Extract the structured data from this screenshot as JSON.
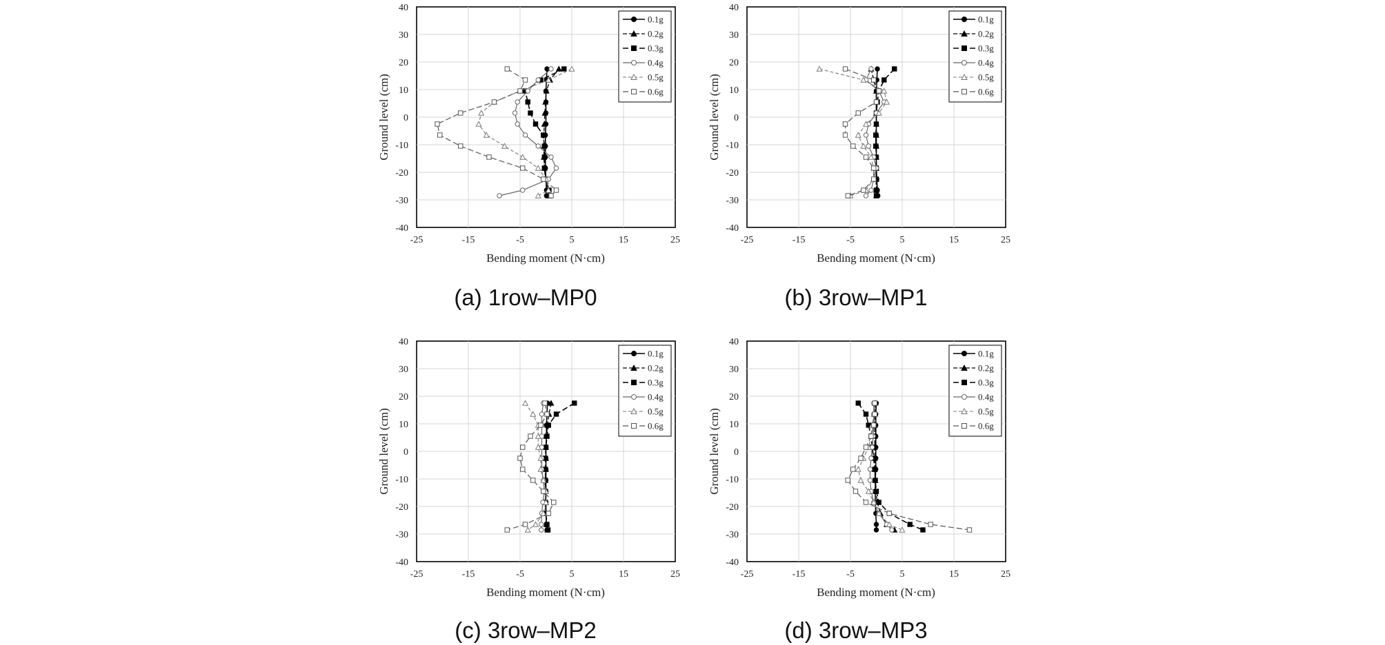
{
  "figure": {
    "captions": [
      "(a) 1row–MP0",
      "(b) 3row–MP1",
      "(c) 3row–MP2",
      "(d) 3row–MP3"
    ]
  },
  "chart_data": [
    {
      "type": "line",
      "id": "a",
      "caption": "(a) 1row–MP0",
      "xlabel": "Bending moment (N·cm)",
      "ylabel": "Ground level (cm)",
      "xlim": [
        -25,
        25
      ],
      "ylim": [
        -40,
        40
      ],
      "xticks": [
        -25,
        -15,
        -5,
        5,
        15,
        25
      ],
      "yticks": [
        40,
        30,
        20,
        10,
        0,
        -10,
        -20,
        -30,
        -40
      ],
      "grid": true,
      "legend": "top-right",
      "y": [
        17.5,
        13.5,
        9.5,
        5.5,
        1.5,
        -2.5,
        -6.5,
        -10.5,
        -14.5,
        -18.5,
        -22.5,
        -26.5,
        -28.5
      ],
      "series": [
        {
          "name": "0.1g",
          "x": [
            0.2,
            0.1,
            0.0,
            0.0,
            0.0,
            0.0,
            -0.1,
            -0.1,
            -0.1,
            -0.1,
            0.0,
            0.1,
            0.1
          ]
        },
        {
          "name": "0.2g",
          "x": [
            2.5,
            0.8,
            0.1,
            -0.1,
            -0.2,
            -0.3,
            -0.4,
            -0.4,
            -0.4,
            -0.3,
            -0.1,
            0.3,
            0.5
          ]
        },
        {
          "name": "0.3g",
          "x": [
            3.5,
            -1.0,
            -4.0,
            -3.5,
            -3.0,
            -2.0,
            -0.5,
            -0.3,
            -0.3,
            -0.3,
            0.0,
            0.6,
            0.9
          ]
        },
        {
          "name": "0.4g",
          "x": [
            1.0,
            -1.5,
            -3.5,
            -5.5,
            -6.0,
            -5.5,
            -4.0,
            -1.5,
            1.0,
            2.0,
            0.5,
            -4.5,
            -9.0
          ]
        },
        {
          "name": "0.5g",
          "x": [
            5.0,
            0.5,
            -5.0,
            -10.0,
            -12.5,
            -13.0,
            -11.5,
            -8.0,
            -4.5,
            -1.5,
            0.0,
            0.5,
            -1.5
          ]
        },
        {
          "name": "0.6g",
          "x": [
            -7.5,
            -4.0,
            -5.0,
            -10.0,
            -16.5,
            -21.0,
            -20.5,
            -16.5,
            -11.0,
            -4.5,
            -0.5,
            2.0,
            1.0
          ]
        }
      ]
    },
    {
      "type": "line",
      "id": "b",
      "caption": "(b) 3row–MP1",
      "xlabel": "Bending moment (N·cm)",
      "ylabel": "Ground level (cm)",
      "xlim": [
        -25,
        25
      ],
      "ylim": [
        -40,
        40
      ],
      "xticks": [
        -25,
        -15,
        -5,
        5,
        15,
        25
      ],
      "yticks": [
        40,
        30,
        20,
        10,
        0,
        -10,
        -20,
        -30,
        -40
      ],
      "grid": true,
      "legend": "top-right",
      "y": [
        17.5,
        13.5,
        9.5,
        5.5,
        1.5,
        -2.5,
        -6.5,
        -10.5,
        -14.5,
        -18.5,
        -22.5,
        -26.5,
        -28.5
      ],
      "series": [
        {
          "name": "0.1g",
          "x": [
            0.2,
            0.1,
            0.0,
            0.0,
            0.0,
            0.0,
            0.0,
            0.0,
            0.0,
            0.0,
            0.1,
            0.2,
            0.3
          ]
        },
        {
          "name": "0.2g",
          "x": [
            -1.0,
            -0.5,
            0.0,
            0.0,
            0.0,
            0.0,
            0.0,
            0.0,
            0.0,
            0.0,
            0.0,
            0.0,
            0.0
          ]
        },
        {
          "name": "0.3g",
          "x": [
            3.5,
            1.5,
            0.5,
            0.2,
            0.0,
            0.0,
            -0.1,
            -0.1,
            0.0,
            0.0,
            0.0,
            0.0,
            0.0
          ]
        },
        {
          "name": "0.4g",
          "x": [
            -1.0,
            -2.0,
            0.5,
            1.5,
            0.0,
            -1.5,
            -2.0,
            -1.5,
            -0.5,
            0.0,
            -0.5,
            -1.0,
            -2.0
          ]
        },
        {
          "name": "0.5g",
          "x": [
            -11.0,
            -2.5,
            1.5,
            2.0,
            0.5,
            -2.0,
            -3.5,
            -2.5,
            -1.0,
            -0.5,
            -0.5,
            -2.0,
            -5.0
          ]
        },
        {
          "name": "0.6g",
          "x": [
            -6.0,
            -0.5,
            0.5,
            0.0,
            -3.5,
            -6.0,
            -6.0,
            -4.5,
            -2.0,
            -0.5,
            -0.5,
            -2.5,
            -5.5
          ]
        }
      ]
    },
    {
      "type": "line",
      "id": "c",
      "caption": "(c) 3row–MP2",
      "xlabel": "Bending moment (N·cm)",
      "ylabel": "Ground level (cm)",
      "xlim": [
        -25,
        25
      ],
      "ylim": [
        -40,
        40
      ],
      "xticks": [
        -25,
        -15,
        -5,
        5,
        15,
        25
      ],
      "yticks": [
        40,
        30,
        20,
        10,
        0,
        -10,
        -20,
        -30,
        -40
      ],
      "grid": true,
      "legend": "top-right",
      "y": [
        17.5,
        13.5,
        9.5,
        5.5,
        1.5,
        -2.5,
        -6.5,
        -10.5,
        -14.5,
        -18.5,
        -22.5,
        -26.5,
        -28.5
      ],
      "series": [
        {
          "name": "0.1g",
          "x": [
            0.3,
            0.2,
            0.1,
            0.1,
            0.0,
            0.0,
            0.0,
            0.0,
            0.0,
            0.0,
            0.0,
            0.1,
            0.2
          ]
        },
        {
          "name": "0.2g",
          "x": [
            1.0,
            0.6,
            0.3,
            0.1,
            0.0,
            0.0,
            0.0,
            -0.1,
            -0.1,
            0.0,
            0.0,
            0.1,
            0.3
          ]
        },
        {
          "name": "0.3g",
          "x": [
            5.5,
            2.0,
            0.5,
            0.2,
            0.0,
            -0.1,
            -0.1,
            -0.1,
            -0.1,
            -0.1,
            0.0,
            0.2,
            0.4
          ]
        },
        {
          "name": "0.4g",
          "x": [
            -0.5,
            -0.8,
            -0.8,
            -0.8,
            -0.8,
            -0.8,
            -0.8,
            -0.5,
            -0.3,
            -0.6,
            -0.8,
            -0.9,
            -0.9
          ]
        },
        {
          "name": "0.5g",
          "x": [
            -4.0,
            -2.5,
            -1.5,
            -1.5,
            -1.5,
            -1.0,
            -1.0,
            -0.5,
            0.0,
            0.0,
            -0.5,
            -2.0,
            -3.5
          ]
        },
        {
          "name": "0.6g",
          "x": [
            -0.2,
            0.2,
            -1.0,
            -3.0,
            -4.5,
            -5.0,
            -4.5,
            -2.5,
            -0.5,
            1.5,
            0.5,
            -4.0,
            -7.5
          ]
        }
      ]
    },
    {
      "type": "line",
      "id": "d",
      "caption": "(d) 3row–MP3",
      "xlabel": "Bending moment (N·cm)",
      "ylabel": "Ground level (cm)",
      "xlim": [
        -25,
        25
      ],
      "ylim": [
        -40,
        40
      ],
      "xticks": [
        -25,
        -15,
        -5,
        5,
        15,
        25
      ],
      "yticks": [
        40,
        30,
        20,
        10,
        0,
        -10,
        -20,
        -30,
        -40
      ],
      "grid": true,
      "legend": "top-right",
      "y": [
        17.5,
        13.5,
        9.5,
        5.5,
        1.5,
        -2.5,
        -6.5,
        -10.5,
        -14.5,
        -18.5,
        -22.5,
        -26.5,
        -28.5
      ],
      "series": [
        {
          "name": "0.1g",
          "x": [
            0.0,
            -0.1,
            -0.1,
            -0.1,
            -0.1,
            -0.1,
            -0.1,
            -0.2,
            -0.2,
            -0.2,
            -0.1,
            0.0,
            0.0
          ]
        },
        {
          "name": "0.2g",
          "x": [
            -0.2,
            -0.3,
            -0.3,
            -0.3,
            -0.3,
            -0.3,
            -0.3,
            -0.2,
            -0.1,
            0.2,
            0.8,
            2.0,
            3.5
          ]
        },
        {
          "name": "0.3g",
          "x": [
            -3.5,
            -2.0,
            -1.5,
            -1.0,
            -0.8,
            -0.5,
            -0.3,
            -0.2,
            0.0,
            0.5,
            2.5,
            6.5,
            9.0
          ]
        },
        {
          "name": "0.4g",
          "x": [
            -0.5,
            -0.5,
            -0.5,
            -0.6,
            -0.8,
            -1.0,
            -1.2,
            -1.2,
            -1.0,
            -0.5,
            0.5,
            2.0,
            3.0
          ]
        },
        {
          "name": "0.5g",
          "x": [
            -0.3,
            -0.5,
            -0.8,
            -1.0,
            -1.5,
            -2.5,
            -3.5,
            -3.0,
            -1.5,
            -0.5,
            0.5,
            2.5,
            5.0
          ]
        },
        {
          "name": "0.6g",
          "x": [
            -0.3,
            -0.3,
            -0.5,
            -1.0,
            -2.0,
            -3.0,
            -4.5,
            -5.5,
            -4.0,
            -2.0,
            2.5,
            10.5,
            18.0
          ]
        }
      ]
    }
  ]
}
